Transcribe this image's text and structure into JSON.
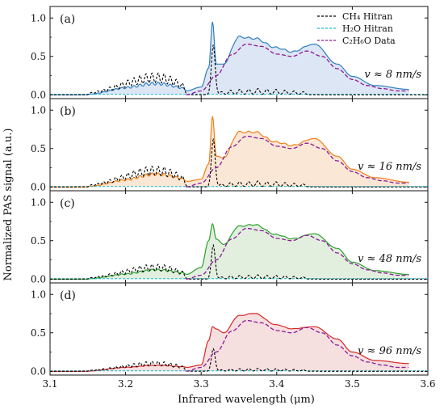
{
  "chart_data": {
    "type": "line",
    "ylabel": "Normalized PAS signal (a.u.)",
    "xlabel": "Infrared wavelength (μm)",
    "xlim": [
      3.1,
      3.6
    ],
    "xticks": [
      "3.1",
      "3.2",
      "3.3",
      "3.4",
      "3.5",
      "3.6"
    ],
    "ylim": [
      -0.05,
      1.15
    ],
    "yticks": [
      "0.0",
      "0.5",
      "1.0"
    ],
    "legend": {
      "placement": "top-right",
      "entries": [
        {
          "label": "CH₄ Hitran",
          "color": "#000000"
        },
        {
          "label": "H₂O Hitran",
          "color": "#17becf"
        },
        {
          "label": "C₂H₆O Data",
          "color": "#8b1a9a"
        }
      ]
    },
    "ethanol_reference": {
      "name": "C₂H₆O Data",
      "x": [
        3.28,
        3.3,
        3.32,
        3.34,
        3.36,
        3.38,
        3.4,
        3.42,
        3.44,
        3.46,
        3.48,
        3.5,
        3.52,
        3.54,
        3.56,
        3.575
      ],
      "y": [
        0.0,
        0.05,
        0.25,
        0.52,
        0.66,
        0.63,
        0.53,
        0.5,
        0.57,
        0.5,
        0.34,
        0.2,
        0.12,
        0.08,
        0.05,
        0.05
      ]
    },
    "methane_peaks": {
      "x": [
        3.155,
        3.163,
        3.171,
        3.179,
        3.187,
        3.195,
        3.203,
        3.211,
        3.219,
        3.227,
        3.235,
        3.243,
        3.251,
        3.259,
        3.267,
        3.275,
        3.316,
        3.327,
        3.339,
        3.351,
        3.363,
        3.375,
        3.387,
        3.399,
        3.411,
        3.423,
        3.435
      ],
      "y": [
        0.03,
        0.05,
        0.07,
        0.1,
        0.13,
        0.16,
        0.19,
        0.22,
        0.25,
        0.27,
        0.28,
        0.28,
        0.27,
        0.24,
        0.2,
        0.15,
        0.65,
        0.04,
        0.06,
        0.07,
        0.07,
        0.08,
        0.07,
        0.07,
        0.06,
        0.05,
        0.04
      ],
      "width": 0.0025
    },
    "panels": [
      {
        "label": "(a)",
        "speed": "v ≈ 8 nm/s",
        "color": "#2f7fc1",
        "fill": "#dde6f4",
        "x": [
          3.1,
          3.15,
          3.2,
          3.24,
          3.28,
          3.3,
          3.31,
          3.315,
          3.32,
          3.33,
          3.35,
          3.37,
          3.4,
          3.42,
          3.45,
          3.48,
          3.5,
          3.53,
          3.575
        ],
        "y": [
          0.0,
          0.0,
          0.05,
          0.08,
          0.05,
          0.1,
          0.35,
          0.95,
          0.4,
          0.4,
          0.74,
          0.72,
          0.6,
          0.55,
          0.66,
          0.4,
          0.24,
          0.12,
          0.07
        ]
      },
      {
        "label": "(b)",
        "speed": "v ≈ 16 nm/s",
        "color": "#f07f18",
        "fill": "#fbe7d5",
        "x": [
          3.1,
          3.15,
          3.2,
          3.24,
          3.28,
          3.3,
          3.31,
          3.315,
          3.32,
          3.33,
          3.35,
          3.37,
          3.4,
          3.42,
          3.45,
          3.48,
          3.5,
          3.53,
          3.575
        ],
        "y": [
          0.0,
          0.0,
          0.05,
          0.1,
          0.07,
          0.1,
          0.3,
          0.92,
          0.4,
          0.38,
          0.7,
          0.7,
          0.57,
          0.53,
          0.63,
          0.4,
          0.23,
          0.12,
          0.06
        ]
      },
      {
        "label": "(c)",
        "speed": "v ≈ 48 nm/s",
        "color": "#2ca02c",
        "fill": "#e2efdf",
        "x": [
          3.1,
          3.15,
          3.2,
          3.24,
          3.28,
          3.3,
          3.31,
          3.315,
          3.32,
          3.33,
          3.35,
          3.37,
          3.4,
          3.42,
          3.45,
          3.48,
          3.5,
          3.53,
          3.575
        ],
        "y": [
          0.0,
          0.0,
          0.04,
          0.08,
          0.06,
          0.15,
          0.5,
          0.72,
          0.52,
          0.45,
          0.68,
          0.7,
          0.57,
          0.52,
          0.59,
          0.4,
          0.22,
          0.11,
          0.06
        ]
      },
      {
        "label": "(d)",
        "speed": "v ≈ 96 nm/s",
        "color": "#d62728",
        "fill": "#f6dfdf",
        "x": [
          3.1,
          3.15,
          3.2,
          3.24,
          3.28,
          3.3,
          3.31,
          3.315,
          3.32,
          3.33,
          3.35,
          3.37,
          3.4,
          3.42,
          3.45,
          3.48,
          3.5,
          3.53,
          3.575
        ],
        "y": [
          0.0,
          0.0,
          0.04,
          0.06,
          0.05,
          0.08,
          0.4,
          0.58,
          0.55,
          0.5,
          0.72,
          0.75,
          0.6,
          0.55,
          0.58,
          0.42,
          0.25,
          0.14,
          0.1
        ]
      }
    ]
  }
}
